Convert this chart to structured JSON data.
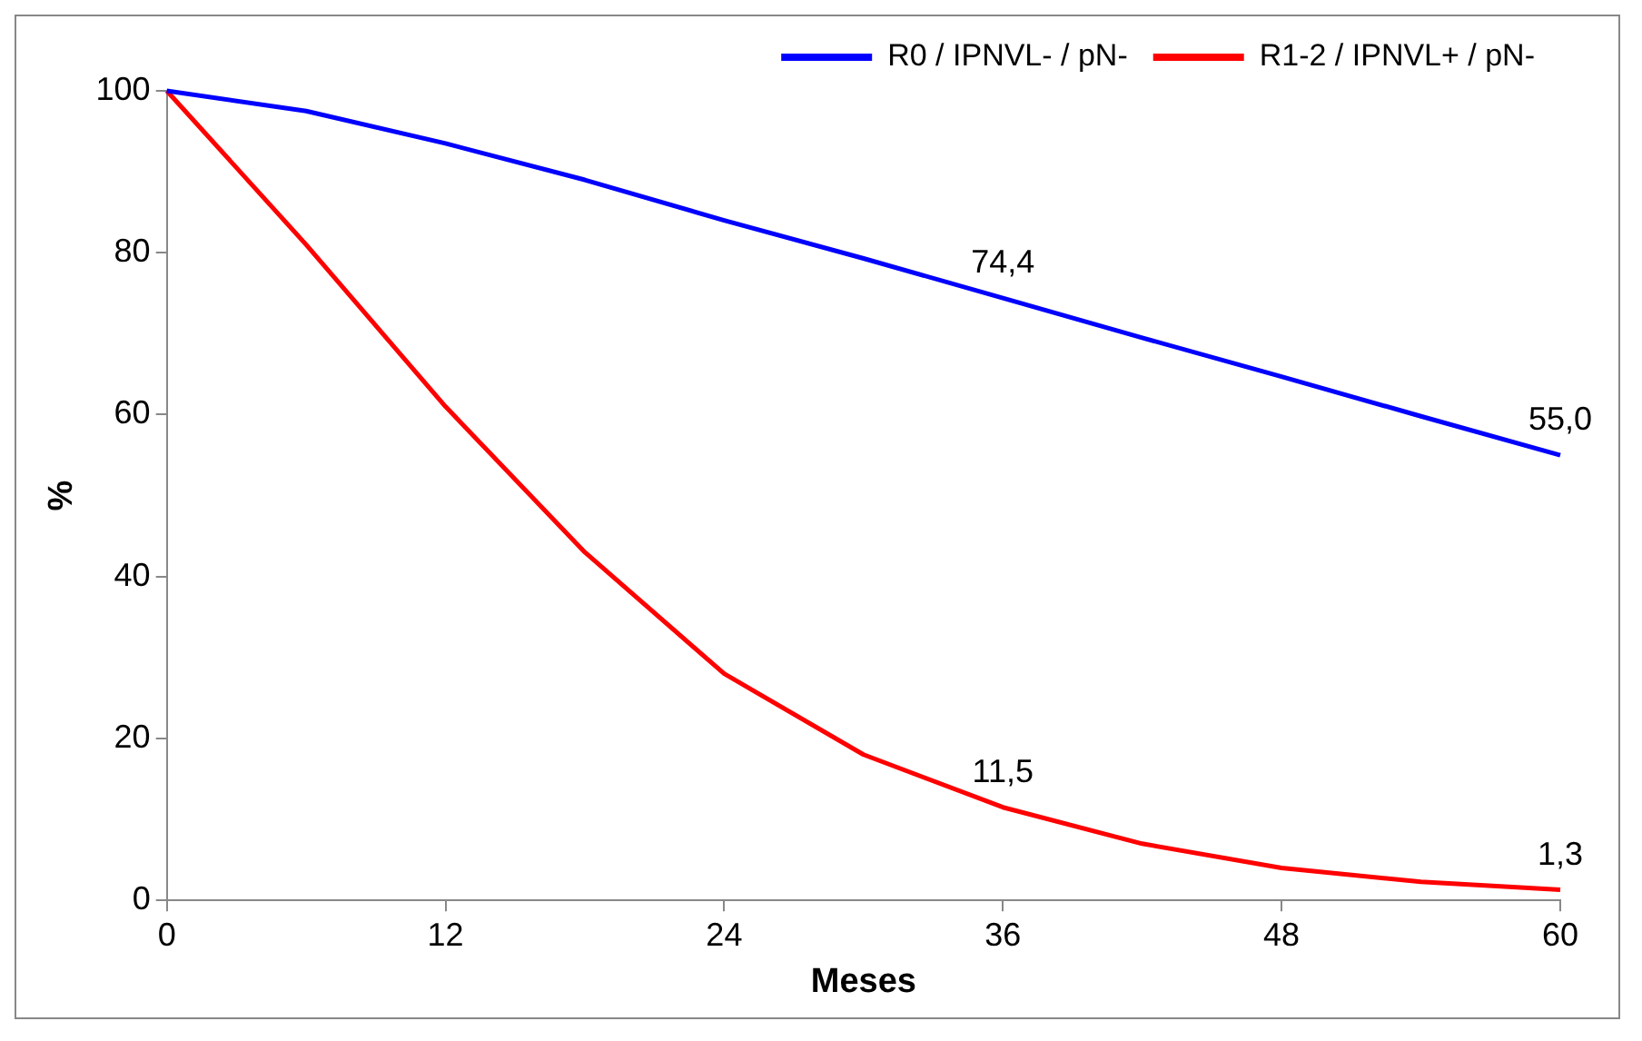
{
  "chart_data": {
    "type": "line",
    "xlabel": "Meses",
    "ylabel": "%",
    "x": [
      0,
      6,
      12,
      18,
      24,
      30,
      36,
      42,
      48,
      54,
      60
    ],
    "series": [
      {
        "name": "R0 / IPNVL- / pN-",
        "color": "#0000ff",
        "values": [
          100,
          97.5,
          93.5,
          89,
          84,
          79.3,
          74.4,
          69.5,
          64.7,
          59.8,
          55.0
        ],
        "value_labels": [
          null,
          null,
          null,
          null,
          null,
          null,
          "74,4",
          null,
          null,
          null,
          "55,0"
        ]
      },
      {
        "name": "R1-2 / IPNVL+ / pN-",
        "color": "#ff0000",
        "values": [
          100,
          81,
          61,
          43,
          28,
          18,
          11.5,
          7,
          4,
          2.3,
          1.3
        ],
        "value_labels": [
          null,
          null,
          null,
          null,
          null,
          null,
          "11,5",
          null,
          null,
          null,
          "1,3"
        ]
      }
    ],
    "xlim": [
      0,
      60
    ],
    "xticks": [
      0,
      12,
      24,
      36,
      48,
      60
    ],
    "ylim": [
      0,
      100
    ],
    "yticks": [
      0,
      20,
      40,
      60,
      80,
      100
    ],
    "grid": false,
    "legend": "top right",
    "marker": "none",
    "line_style": "solid"
  }
}
